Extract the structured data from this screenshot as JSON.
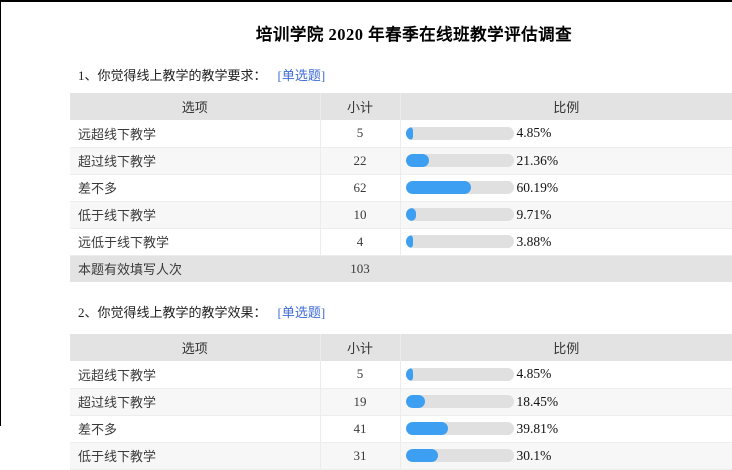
{
  "page": {
    "title": "培训学院 2020 年春季在线班教学评估调查"
  },
  "questions": [
    {
      "label": "1、你觉得线上教学的教学要求：",
      "tag": "[单选题]",
      "table": {
        "headers": [
          "选项",
          "小计",
          "比例"
        ],
        "rows": [
          {
            "option": "远超线下教学",
            "count": "5",
            "percent": 4.85,
            "percent_label": "4.85%"
          },
          {
            "option": "超过线下教学",
            "count": "22",
            "percent": 21.36,
            "percent_label": "21.36%"
          },
          {
            "option": "差不多",
            "count": "62",
            "percent": 60.19,
            "percent_label": "60.19%"
          },
          {
            "option": "低于线下教学",
            "count": "10",
            "percent": 9.71,
            "percent_label": "9.71%"
          },
          {
            "option": "远低于线下教学",
            "count": "4",
            "percent": 3.88,
            "percent_label": "3.88%"
          }
        ],
        "total_label": "本题有效填写人次",
        "total_count": "103"
      }
    },
    {
      "label": "2、你觉得线上教学的教学效果：",
      "tag": "[单选题]",
      "table": {
        "headers": [
          "选项",
          "小计",
          "比例"
        ],
        "rows": [
          {
            "option": "远超线下教学",
            "count": "5",
            "percent": 4.85,
            "percent_label": "4.85%"
          },
          {
            "option": "超过线下教学",
            "count": "19",
            "percent": 18.45,
            "percent_label": "18.45%"
          },
          {
            "option": "差不多",
            "count": "41",
            "percent": 39.81,
            "percent_label": "39.81%"
          },
          {
            "option": "低于线下教学",
            "count": "31",
            "percent": 30.1,
            "percent_label": "30.1%"
          }
        ]
      }
    }
  ],
  "chart_data": [
    {
      "type": "bar",
      "title": "1、你觉得线上教学的教学要求：",
      "categories": [
        "远超线下教学",
        "超过线下教学",
        "差不多",
        "低于线下教学",
        "远低于线下教学"
      ],
      "series": [
        {
          "name": "小计",
          "values": [
            5,
            22,
            62,
            10,
            4
          ]
        },
        {
          "name": "比例(%)",
          "values": [
            4.85,
            21.36,
            60.19,
            9.71,
            3.88
          ]
        }
      ],
      "total_respondents": 103
    },
    {
      "type": "bar",
      "title": "2、你觉得线上教学的教学效果：",
      "categories": [
        "远超线下教学",
        "超过线下教学",
        "差不多",
        "低于线下教学"
      ],
      "series": [
        {
          "name": "小计",
          "values": [
            5,
            19,
            41,
            31
          ]
        },
        {
          "name": "比例(%)",
          "values": [
            4.85,
            18.45,
            39.81,
            30.1
          ]
        }
      ]
    }
  ],
  "colors": {
    "bar_fill": "#3d9ff2",
    "bar_track": "#e0e0e0",
    "header_bg": "#e3e3e3",
    "stripe_bg": "#f7f7f7",
    "link": "#3e6bd5"
  }
}
